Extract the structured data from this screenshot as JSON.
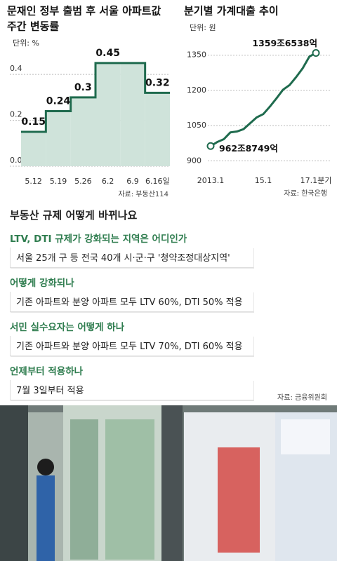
{
  "chart_data": [
    {
      "type": "step",
      "title": [
        "문재인 정부 출범 후 서울 아파트값",
        "주간 변동률"
      ],
      "unit": "단위: %",
      "source": "자료: 부동산114",
      "categories": [
        "5.12",
        "5.19",
        "5.26",
        "6.2",
        "6.9",
        "6.16일"
      ],
      "values": [
        0.15,
        0.24,
        0.3,
        0.45,
        0.45,
        0.32
      ],
      "value_labels": [
        "0.15",
        "0.24",
        "0.3",
        "0.45",
        null,
        "0.32"
      ],
      "color": "#1f6b4e",
      "fill": "#cfe3da",
      "ylim": [
        0,
        0.48
      ],
      "yticks": [
        {
          "value": 0,
          "label": "0.0"
        },
        0.2,
        0.4
      ],
      "grid": true
    },
    {
      "type": "line",
      "title": [
        "분기별 가계대출 추이"
      ],
      "unit": "단위: 원",
      "source": "자료: 한국은행",
      "categories": [
        "2013.1",
        null,
        null,
        null,
        null,
        null,
        null,
        null,
        "15.1",
        null,
        null,
        null,
        null,
        null,
        null,
        null,
        "17.1분기"
      ],
      "values": [
        962.8749,
        980,
        992,
        1021,
        1025,
        1035,
        1060,
        1085,
        1099,
        1131,
        1166,
        1203,
        1223,
        1257,
        1295,
        1344,
        1359.6538
      ],
      "value_labels": [
        "962조8749억",
        null,
        null,
        null,
        null,
        null,
        null,
        null,
        null,
        null,
        null,
        null,
        null,
        null,
        null,
        null,
        "1359조6538억"
      ],
      "color": "#1f6b4e",
      "ylim": [
        880,
        1400
      ],
      "yticks": [
        900,
        1050,
        1200,
        1350
      ],
      "grid": true
    }
  ],
  "qa": {
    "heading": "부동산 규제 어떻게 바뀌나요",
    "items": [
      {
        "q": "LTV, DTI 규제가 강화되는 지역은 어디인가",
        "a": "서울 25개 구 등 전국 40개 시·군·구 '청약조정대상지역'"
      },
      {
        "q": "어떻게 강화되나",
        "a": "기존 아파트와 분양 아파트 모두 LTV 60%, DTI 50% 적용"
      },
      {
        "q": "서민 실수요자는 어떻게 하나",
        "a": "기존 아파트와 분양 아파트 모두 LTV 70%, DTI 60% 적용"
      },
      {
        "q": "언제부터 적용하나",
        "a": "7월 3일부터 적용"
      }
    ],
    "source": "자료: 금융위원회"
  }
}
